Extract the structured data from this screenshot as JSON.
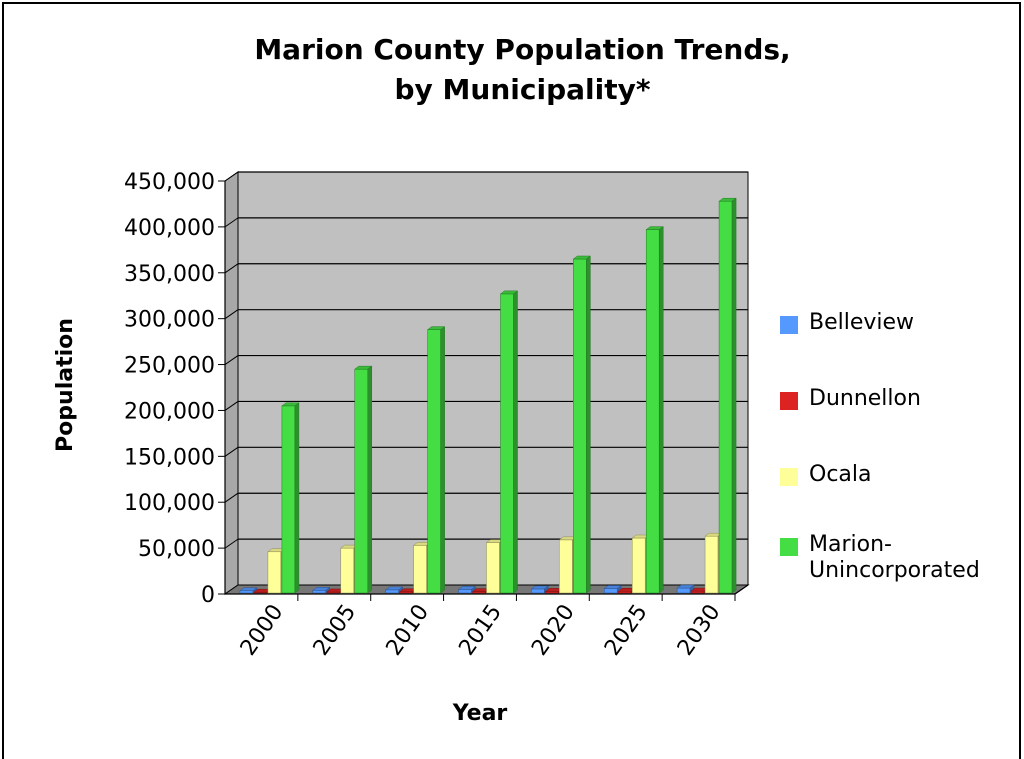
{
  "chart_data": {
    "type": "bar",
    "title": [
      "Marion County Population Trends,",
      "by Municipality*"
    ],
    "xlabel": "Year",
    "ylabel": "Population",
    "categories": [
      "2000",
      "2005",
      "2010",
      "2015",
      "2020",
      "2025",
      "2030"
    ],
    "ylim": [
      0,
      450000
    ],
    "y_ticks": [
      0,
      50000,
      100000,
      150000,
      200000,
      250000,
      300000,
      350000,
      400000,
      450000
    ],
    "y_tick_labels": [
      "0",
      "50,000",
      "100,000",
      "150,000",
      "200,000",
      "250,000",
      "300,000",
      "350,000",
      "400,000",
      "450,000"
    ],
    "grid": true,
    "legend_position": "right",
    "series": [
      {
        "name": "Belleview",
        "color": "#5599ff",
        "values": [
          3500,
          4000,
          4500,
          5000,
          5500,
          6000,
          6500
        ]
      },
      {
        "name": "Dunnellon",
        "color": "#dd2222",
        "values": [
          2000,
          2200,
          2400,
          2600,
          2800,
          3000,
          3200
        ]
      },
      {
        "name": "Ocala",
        "color": "#ffff99",
        "values": [
          46000,
          50000,
          53000,
          56000,
          59000,
          61000,
          63000
        ]
      },
      {
        "name": "Marion-\nUnincorporated",
        "color": "#44dd44",
        "values": [
          205000,
          245000,
          288000,
          327000,
          365000,
          397000,
          428000
        ]
      }
    ]
  }
}
